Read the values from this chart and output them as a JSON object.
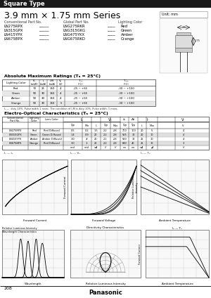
{
  "title_bar_text": "Square Type",
  "title_bar_bg": "#1a1a1a",
  "title_bar_color": "#ffffff",
  "series_title": "3.9 mm × 1.75 mm Series",
  "unit_label": "Unit: mm",
  "part_numbers": [
    [
      "LN275RPX",
      "LNG275RKR",
      "Red"
    ],
    [
      "LN315GPX",
      "LNG315GKG",
      "Green"
    ],
    [
      "LN415YPX",
      "LNG475YKX",
      "Amber"
    ],
    [
      "LN675BPX",
      "LNG675RKD",
      "Orange"
    ]
  ],
  "col_headers_parts": [
    "Conventional Part No.",
    "Global Part No.",
    "Lighting Color"
  ],
  "abs_max_title": "Absolute Maximum Ratings (Tₐ = 25°C)",
  "abs_max_headers": [
    "Lighting Color",
    "P₀(mW)",
    "I₀(mA)",
    "I₀M(mA)",
    "V₀(V)",
    "Tₒₙ(°C)",
    "Tₛₜₛ(°C)"
  ],
  "abs_max_rows": [
    [
      "Red",
      "70",
      "25",
      "150",
      "4",
      "-25 ~ +65",
      "-30 ~ +100"
    ],
    [
      "Green",
      "90",
      "30",
      "150",
      "4",
      "-25 ~ +65",
      "-30 ~ +100"
    ],
    [
      "Amber",
      "90",
      "30",
      "150",
      "4",
      "-25 ~ +65",
      "-30 ~ +100"
    ],
    [
      "Orange",
      "90",
      "30",
      "150",
      "5",
      "-25 ~ +65",
      "-30 ~ +100"
    ]
  ],
  "eo_title": "Electro-Optical Characteristics (Tₐ = 25°C)",
  "eo_rows": [
    [
      "LN275RPX",
      "Red",
      "Red Diffused",
      "0.5",
      "0.2",
      "1.5",
      "2.2",
      "2.8",
      "700",
      "100",
      "20",
      "5",
      "4"
    ],
    [
      "LN315GPX",
      "Green",
      "Green Diffused",
      "1.4",
      "0.9",
      "20",
      "2.2",
      "2.8",
      "565",
      "30",
      "20",
      "10",
      "4"
    ],
    [
      "LN415YPX",
      "Amber",
      "Amber Diffused",
      "3.0",
      "4¹",
      "20",
      "2.1",
      "2.8",
      "590",
      "30",
      "25",
      "10",
      "4"
    ],
    [
      "LN675BPX",
      "Orange",
      "Red Diffused",
      "3.0",
      "1¹",
      "20",
      "2.2",
      "2.8",
      "640",
      "40",
      "25",
      "10",
      "3"
    ]
  ],
  "eo_units": [
    "",
    "",
    "",
    "mcd",
    "mcd",
    "mA",
    "V",
    "V",
    "nm",
    "nm",
    "mA",
    "μA",
    "V"
  ],
  "footnote": "I₀ —  duty 10%. Pulse width 1 msec. The condition of I₀M is duty 10%. Pulse width: 1 msec.",
  "page_number": "208",
  "brand": "Panasonic",
  "bg_color": "#ffffff",
  "grid_color": "#bbbbbb",
  "graph_bg": "#f0f0f0"
}
